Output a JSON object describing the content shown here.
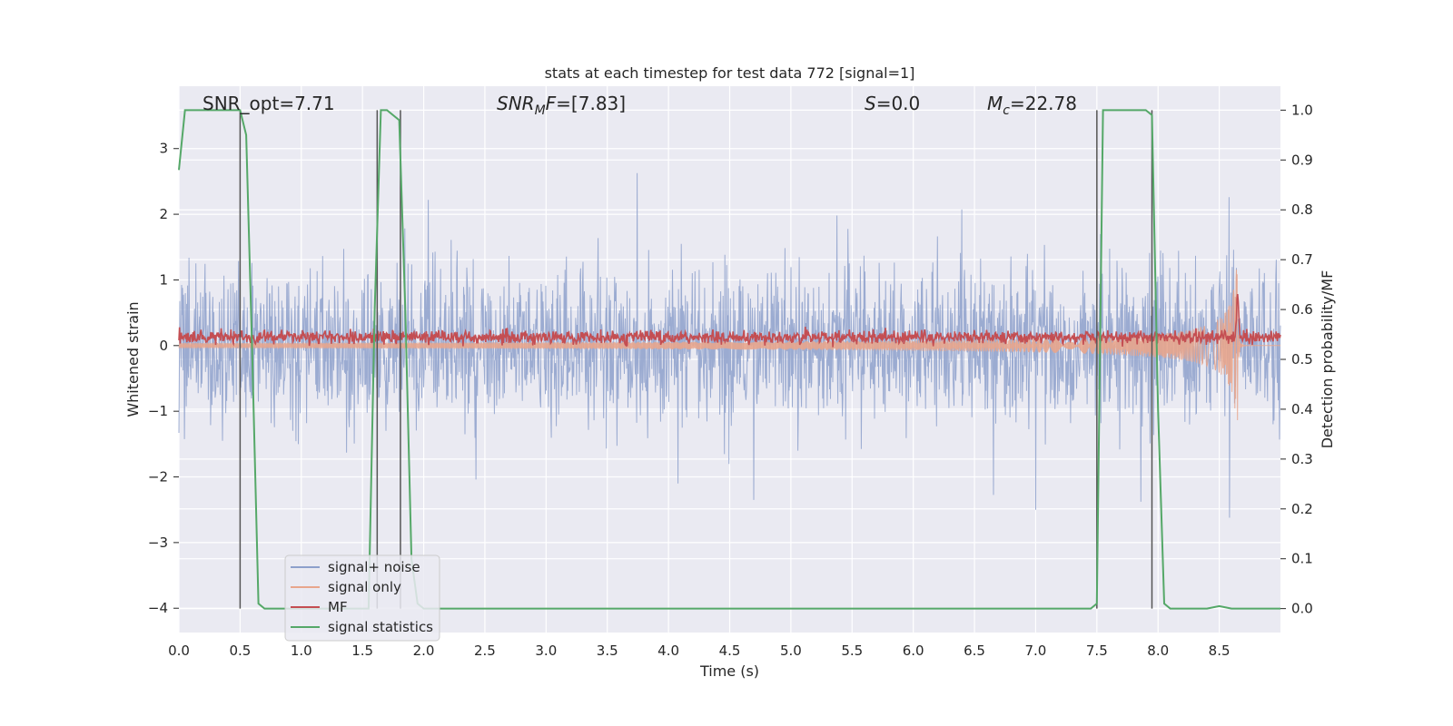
{
  "chart_data": {
    "type": "line",
    "title": "stats at each timestep for test data 772 [signal=1]",
    "xlabel": "Time (s)",
    "ylabel": "Whitened strain",
    "y2label": "Detection probability/MF",
    "xlim": [
      0.0,
      9.0
    ],
    "ylim": [
      -4.37,
      3.95
    ],
    "y2lim": [
      -0.048,
      1.048
    ],
    "xticks": [
      "0.0",
      "0.5",
      "1.0",
      "1.5",
      "2.0",
      "2.5",
      "3.0",
      "3.5",
      "4.0",
      "4.5",
      "5.0",
      "5.5",
      "6.0",
      "6.5",
      "7.0",
      "7.5",
      "8.0",
      "8.5"
    ],
    "yticks": [
      {
        "v": 3,
        "label": "3"
      },
      {
        "v": 2,
        "label": "2"
      },
      {
        "v": 1,
        "label": "1"
      },
      {
        "v": 0,
        "label": "0"
      },
      {
        "v": -1,
        "label": "−1"
      },
      {
        "v": -2,
        "label": "−2"
      },
      {
        "v": -3,
        "label": "−3"
      },
      {
        "v": -4,
        "label": "−4"
      }
    ],
    "y2ticks": [
      "0.0",
      "0.1",
      "0.2",
      "0.3",
      "0.4",
      "0.5",
      "0.6",
      "0.7",
      "0.8",
      "0.9",
      "1.0"
    ],
    "grid": true,
    "legend_position": "lower-left",
    "annotations": {
      "snr_opt": "SNR_opt=7.71",
      "snr_mf_sym": "SNR",
      "snr_mf_sub": "M",
      "snr_mf_rest": "F=[7.83]",
      "s_sym": "S",
      "s_rest": "=0.0",
      "mc_sym": "M",
      "mc_sub": "c",
      "mc_rest": "=22.78"
    },
    "series": [
      {
        "name": "signal+ noise",
        "color": "#8da0cb",
        "axis": "left",
        "kind": "noise",
        "amplitude": 1.1,
        "peak_range": [
          -3.8,
          3.5
        ]
      },
      {
        "name": "signal only",
        "color": "#e8a58c",
        "axis": "left",
        "kind": "chirp",
        "merger_time": 8.65,
        "peak_amplitude": 1.5
      },
      {
        "name": "MF",
        "color": "#c44e52",
        "axis": "left",
        "kind": "noise",
        "center": 0.13,
        "amplitude": 0.1
      },
      {
        "name": "signal statistics",
        "color": "#55a868",
        "axis": "right",
        "x": [
          0.0,
          0.05,
          0.1,
          0.5,
          0.55,
          0.6,
          0.65,
          0.7,
          1.55,
          1.6,
          1.65,
          1.7,
          1.8,
          1.85,
          1.9,
          1.95,
          2.0,
          7.45,
          7.5,
          7.55,
          7.6,
          7.9,
          7.95,
          8.0,
          8.05,
          8.1,
          8.4,
          8.5,
          8.6,
          9.0
        ],
        "y": [
          0.88,
          1.0,
          1.0,
          1.0,
          0.95,
          0.5,
          0.01,
          0.0,
          0.0,
          0.6,
          1.0,
          1.0,
          0.98,
          0.6,
          0.1,
          0.01,
          0.0,
          0.0,
          0.01,
          1.0,
          1.0,
          1.0,
          0.99,
          0.4,
          0.01,
          0.0,
          0.0,
          0.005,
          0.0,
          0.0
        ]
      }
    ],
    "vertical_markers": [
      0.5,
      1.62,
      1.81,
      7.5,
      7.95
    ],
    "legend_entries": [
      "signal+ noise",
      "signal only",
      "MF",
      "signal statistics"
    ]
  }
}
